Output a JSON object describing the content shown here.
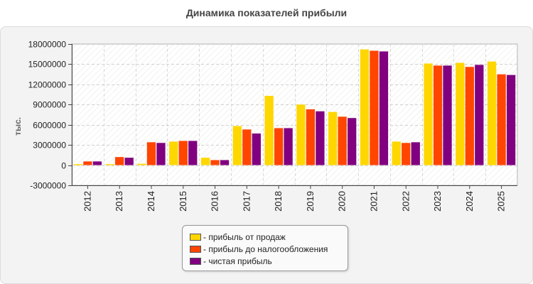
{
  "chart_data": {
    "type": "bar",
    "title": "Динамика показателей прибыли",
    "ylabel": "тыс.",
    "xlabel": "",
    "ylim": [
      -3000000,
      18000000
    ],
    "yticks": [
      -3000000,
      0,
      3000000,
      6000000,
      9000000,
      12000000,
      15000000,
      18000000
    ],
    "ytick_labels": [
      "-3000000",
      "0",
      "3000000",
      "6000000",
      "9000000",
      "12000000",
      "15000000",
      "18000000"
    ],
    "grid": true,
    "legend_position": "bottom-center",
    "categories": [
      "2012",
      "2013",
      "2014",
      "2015",
      "2016",
      "2017",
      "2018",
      "2019",
      "2020",
      "2021",
      "2022",
      "2023",
      "2024",
      "2025"
    ],
    "series": [
      {
        "name": "- прибыль от продаж",
        "color": "#ffd700",
        "values": [
          150000,
          150000,
          200000,
          3500000,
          1100000,
          5800000,
          10300000,
          9000000,
          7900000,
          17200000,
          3500000,
          15100000,
          15200000,
          15400000
        ]
      },
      {
        "name": "- прибыль до налогообложения",
        "color": "#ff4500",
        "values": [
          550000,
          1200000,
          3400000,
          3600000,
          750000,
          5300000,
          5500000,
          8300000,
          7200000,
          17000000,
          3300000,
          14800000,
          14600000,
          13500000
        ]
      },
      {
        "name": "- чистая прибыль",
        "color": "#800080",
        "values": [
          550000,
          1100000,
          3300000,
          3600000,
          750000,
          4700000,
          5500000,
          8000000,
          7000000,
          16900000,
          3400000,
          14800000,
          14900000,
          13400000
        ]
      }
    ]
  }
}
